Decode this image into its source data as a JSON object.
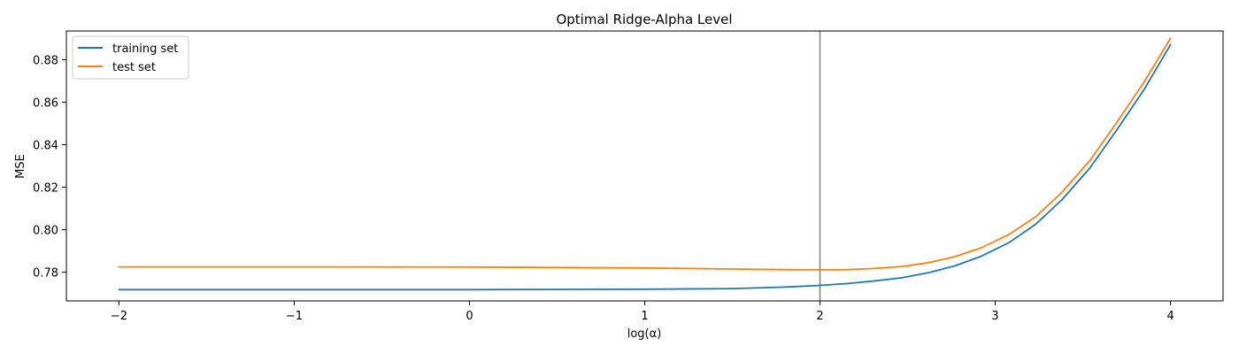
{
  "chart_data": {
    "type": "line",
    "title": "Optimal Ridge-Alpha Level",
    "xlabel": "log(α)",
    "ylabel": "MSE",
    "xlim": [
      -2.3,
      4.3
    ],
    "ylim": [
      0.7665,
      0.8935
    ],
    "xticks": [
      -2,
      -1,
      0,
      1,
      2,
      3,
      4
    ],
    "xtick_labels": [
      "−2",
      "−1",
      "0",
      "1",
      "2",
      "3",
      "4"
    ],
    "yticks": [
      0.78,
      0.8,
      0.82,
      0.84,
      0.86,
      0.88
    ],
    "ytick_labels": [
      "0.78",
      "0.80",
      "0.82",
      "0.84",
      "0.86",
      "0.88"
    ],
    "vline_x": 2,
    "vline_color": "#808080",
    "legend": {
      "position": "top-left"
    },
    "x": [
      -2.0,
      -1.0,
      0.0,
      1.0,
      1.5,
      1.8,
      2.0,
      2.15,
      2.3,
      2.47,
      2.62,
      2.77,
      2.92,
      3.08,
      3.23,
      3.38,
      3.54,
      3.69,
      3.85,
      4.0
    ],
    "series": [
      {
        "name": "training set",
        "color": "#1f77b4",
        "values": [
          0.7718,
          0.7718,
          0.7718,
          0.772,
          0.7723,
          0.773,
          0.7738,
          0.7746,
          0.7758,
          0.7774,
          0.7798,
          0.783,
          0.7875,
          0.794,
          0.8025,
          0.814,
          0.829,
          0.8465,
          0.866,
          0.887
        ]
      },
      {
        "name": "test set",
        "color": "#ff7f0e",
        "values": [
          0.7825,
          0.7825,
          0.7824,
          0.782,
          0.7815,
          0.7812,
          0.7811,
          0.7812,
          0.7817,
          0.7827,
          0.7845,
          0.7873,
          0.7915,
          0.7978,
          0.806,
          0.8175,
          0.8325,
          0.85,
          0.8695,
          0.89
        ]
      }
    ]
  }
}
